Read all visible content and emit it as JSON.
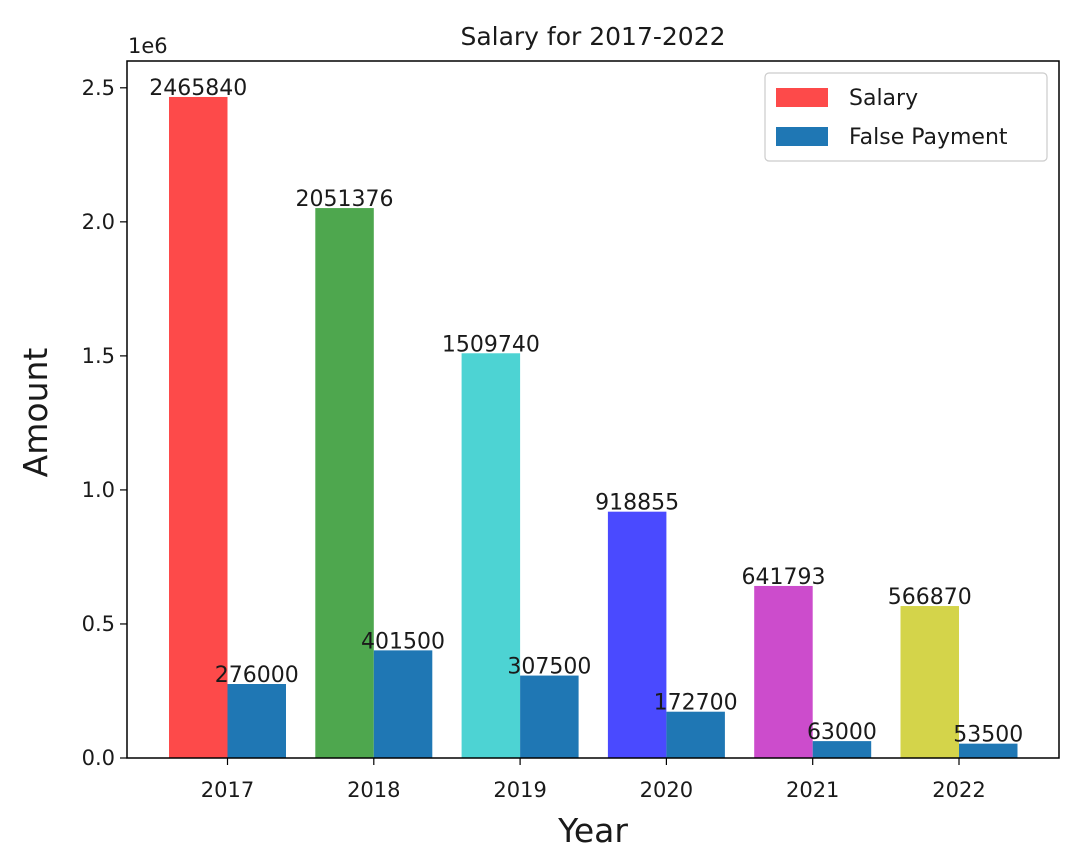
{
  "chart_data": {
    "type": "bar",
    "title": "Salary for 2017-2022",
    "xlabel": "Year",
    "ylabel": "Amount",
    "y_offset_label": "1e6",
    "categories": [
      "2017",
      "2018",
      "2019",
      "2020",
      "2021",
      "2022"
    ],
    "ylim": [
      0,
      2600000
    ],
    "yticks": [
      0,
      500000,
      1000000,
      1500000,
      2000000,
      2500000
    ],
    "ytick_labels": [
      "0.0",
      "0.5",
      "1.0",
      "1.5",
      "2.0",
      "2.5"
    ],
    "legend_position": "top-right",
    "series": [
      {
        "name": "Salary",
        "values": [
          2465840,
          2051376,
          1509740,
          918855,
          641793,
          566870
        ],
        "labels": [
          "2465840",
          "2051376",
          "1509740",
          "918855",
          "641793",
          "566870"
        ],
        "colors": [
          "#fd4a4a",
          "#4ea74e",
          "#4dd3d3",
          "#4a4aff",
          "#cc4ccc",
          "#d4d44a"
        ],
        "legend_color": "#fd4a4a"
      },
      {
        "name": "False Payment",
        "values": [
          276000,
          401500,
          307500,
          172700,
          63000,
          53500
        ],
        "labels": [
          "276000",
          "401500",
          "307500",
          "172700",
          "63000",
          "53500"
        ],
        "colors": [
          "#1f77b4",
          "#1f77b4",
          "#1f77b4",
          "#1f77b4",
          "#1f77b4",
          "#1f77b4"
        ],
        "legend_color": "#1f77b4"
      }
    ]
  }
}
